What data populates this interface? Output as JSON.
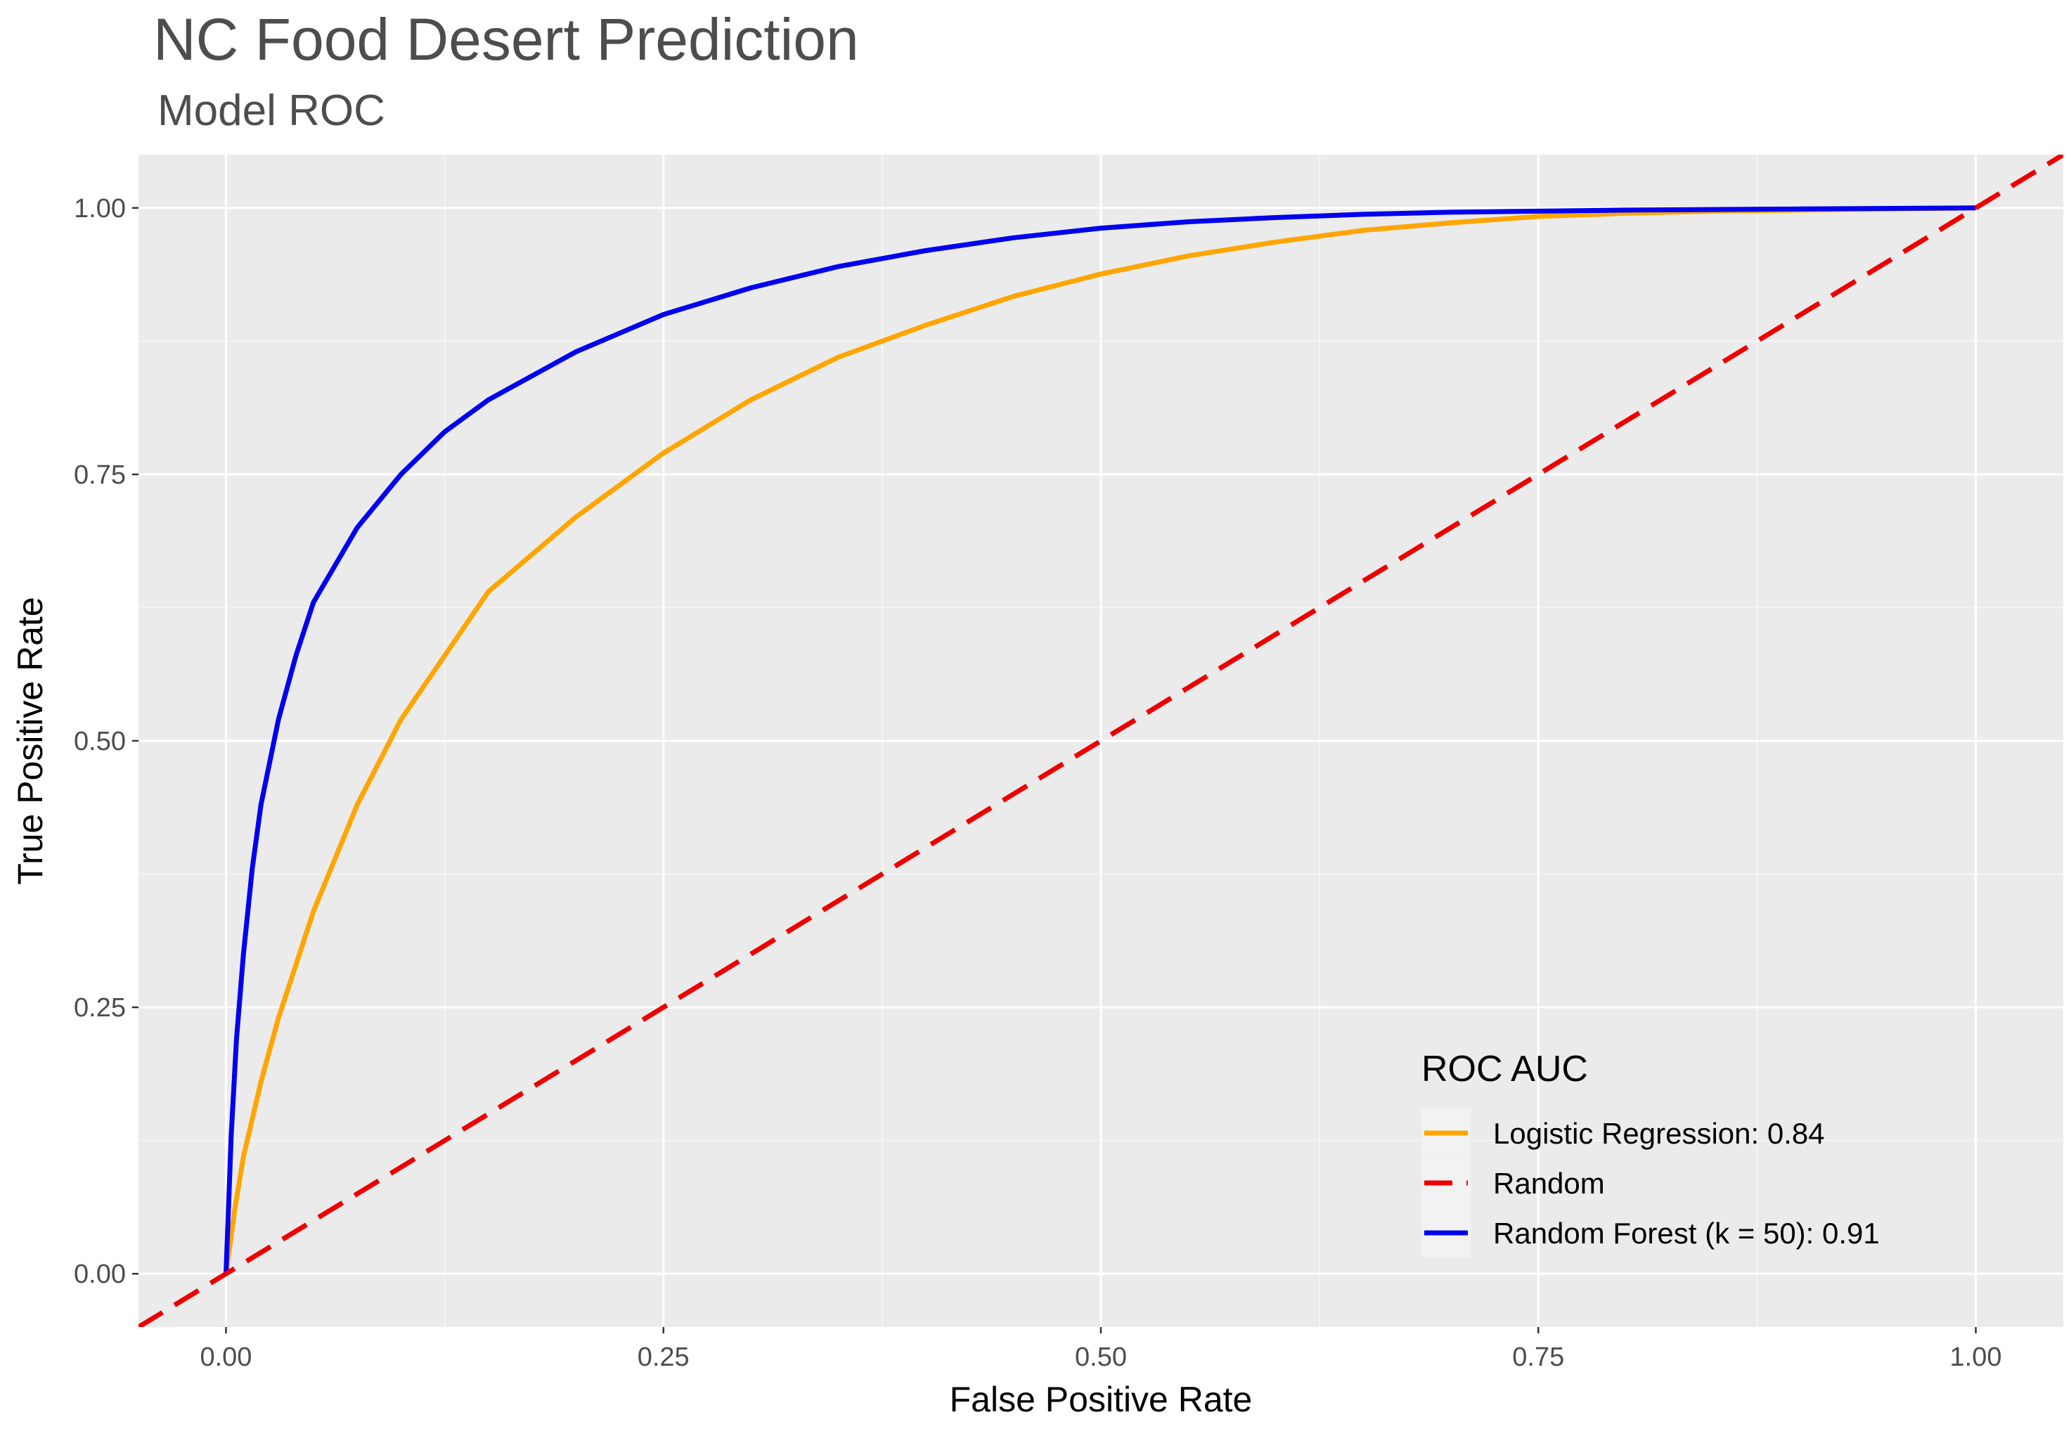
{
  "chart_data": {
    "type": "line",
    "title": "NC Food Desert Prediction",
    "subtitle": "Model ROC",
    "xlabel": "False Positive Rate",
    "ylabel": "True Positive Rate",
    "xlim": [
      -0.05,
      1.05
    ],
    "ylim": [
      -0.05,
      1.05
    ],
    "x_ticks": [
      "0.00",
      "0.25",
      "0.50",
      "0.75",
      "1.00"
    ],
    "y_ticks": [
      "0.00",
      "0.25",
      "0.50",
      "0.75",
      "1.00"
    ],
    "grid": true,
    "legend": {
      "title": "ROC AUC",
      "placement": "bottom-right inside"
    },
    "series": [
      {
        "name": "Logistic Regression: 0.84",
        "color": "#FFA500",
        "line_style": "solid",
        "x": [
          0,
          0.005,
          0.01,
          0.02,
          0.03,
          0.05,
          0.075,
          0.1,
          0.125,
          0.15,
          0.2,
          0.25,
          0.3,
          0.35,
          0.4,
          0.45,
          0.5,
          0.55,
          0.6,
          0.65,
          0.7,
          0.75,
          0.8,
          0.85,
          0.9,
          0.95,
          1.0
        ],
        "y": [
          0,
          0.06,
          0.11,
          0.18,
          0.24,
          0.34,
          0.44,
          0.52,
          0.58,
          0.64,
          0.71,
          0.77,
          0.82,
          0.86,
          0.89,
          0.917,
          0.938,
          0.955,
          0.968,
          0.979,
          0.986,
          0.992,
          0.995,
          0.997,
          0.998,
          0.999,
          1.0
        ]
      },
      {
        "name": "Random",
        "color": "#EE0000",
        "line_style": "dashed",
        "x": [
          -0.05,
          1.05
        ],
        "y": [
          -0.05,
          1.05
        ]
      },
      {
        "name": "Random Forest (k = 50): 0.91",
        "color": "#0000EE",
        "line_style": "solid",
        "x": [
          0,
          0.003,
          0.006,
          0.01,
          0.015,
          0.02,
          0.03,
          0.04,
          0.05,
          0.075,
          0.1,
          0.125,
          0.15,
          0.2,
          0.25,
          0.3,
          0.35,
          0.4,
          0.45,
          0.5,
          0.55,
          0.6,
          0.65,
          0.7,
          0.8,
          0.9,
          1.0
        ],
        "y": [
          0,
          0.13,
          0.22,
          0.3,
          0.38,
          0.44,
          0.52,
          0.58,
          0.63,
          0.7,
          0.75,
          0.79,
          0.82,
          0.865,
          0.9,
          0.925,
          0.945,
          0.96,
          0.972,
          0.981,
          0.987,
          0.991,
          0.994,
          0.996,
          0.998,
          0.999,
          1.0
        ]
      }
    ]
  }
}
